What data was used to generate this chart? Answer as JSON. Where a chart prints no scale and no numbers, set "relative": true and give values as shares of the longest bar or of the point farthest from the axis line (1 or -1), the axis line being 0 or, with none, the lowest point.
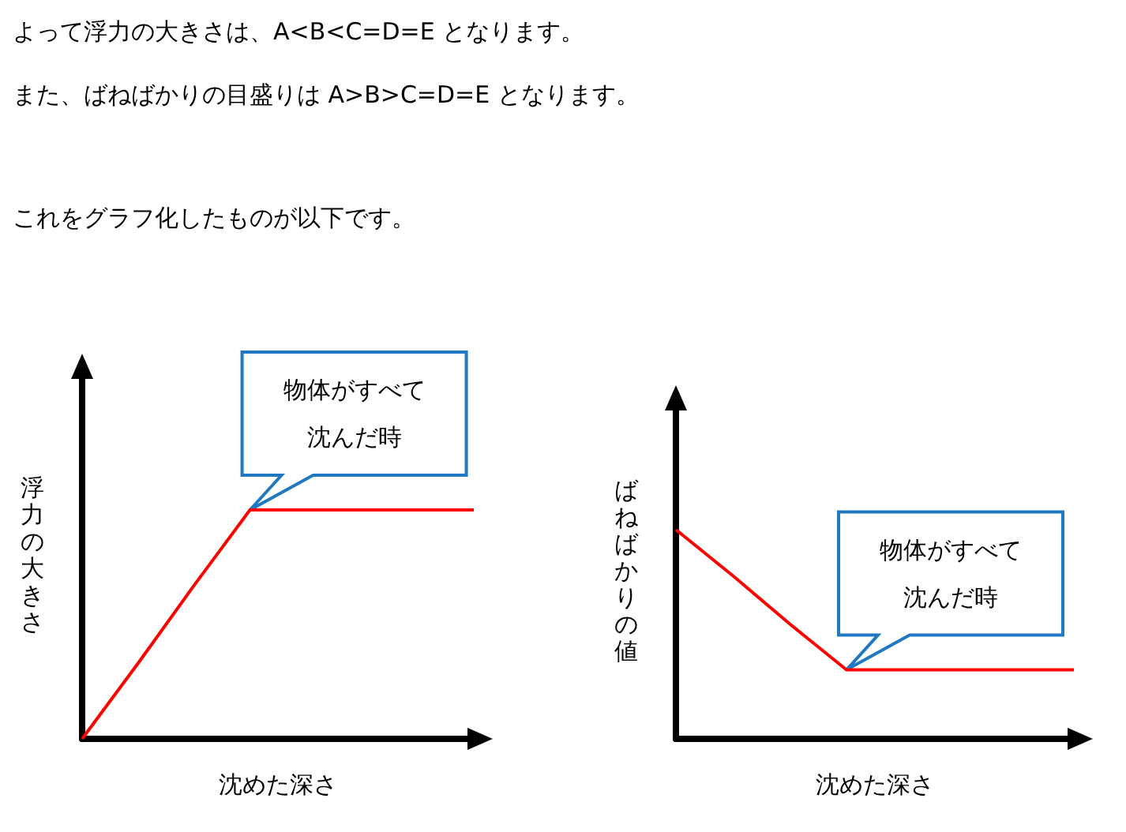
{
  "chart_data": [
    {
      "type": "other",
      "annotations": [
        "よって浮力の大きさは、A<B<C=D=E となります。",
        "また、ばねばかりの目盛りは A>B>C=D=E となります。",
        "これをグラフ化したものが以下です。"
      ]
    },
    {
      "type": "line",
      "xlabel": "沈めた深さ",
      "ylabel": "浮力の大きさ",
      "relative": true,
      "tick_labels": false,
      "marker": "none",
      "categories": [
        null,
        null,
        null,
        null,
        null,
        null,
        null,
        null
      ],
      "series": [
        {
          "color": "#ff0000",
          "values": [
            0,
            0.33,
            0.67,
            1,
            1,
            1,
            1,
            1
          ]
        }
      ],
      "annotations": [
        "物体がすべて沈んだ時"
      ]
    },
    {
      "type": "line",
      "xlabel": "沈めた深さ",
      "ylabel": "ばねばかりの値",
      "relative": true,
      "tick_labels": false,
      "marker": "none",
      "categories": [
        null,
        null,
        null,
        null,
        null,
        null,
        null,
        null
      ],
      "series": [
        {
          "color": "#ff0000",
          "values": [
            1,
            0.78,
            0.55,
            0.33,
            0.33,
            0.33,
            0.33,
            0.33
          ]
        }
      ],
      "annotations": [
        "物体がすべて沈んだ時"
      ]
    }
  ]
}
